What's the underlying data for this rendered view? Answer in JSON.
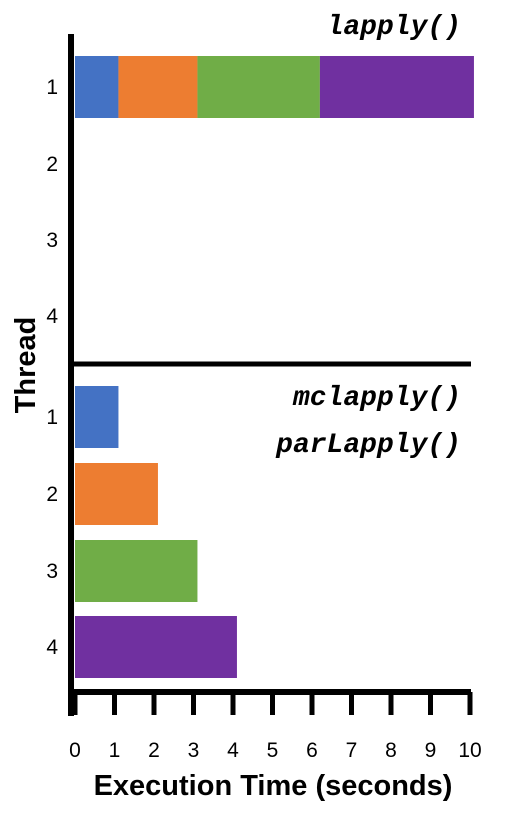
{
  "chart_data": {
    "type": "bar",
    "orientation": "horizontal",
    "stacked": true,
    "xlabel": "Execution Time (seconds)",
    "ylabel": "Thread",
    "xlim": [
      0,
      10
    ],
    "xticks": [
      "0",
      "1",
      "2",
      "3",
      "4",
      "5",
      "6",
      "7",
      "8",
      "9",
      "10"
    ],
    "grid": false,
    "legend": "none",
    "task_colors": [
      "#4472C4",
      "#ED7D31",
      "#70AD47",
      "#7030A0"
    ],
    "panels": [
      {
        "titles": [
          "lapply()"
        ],
        "threads": [
          "1",
          "2",
          "3",
          "4"
        ],
        "segments": [
          {
            "thread": "1",
            "start": 0,
            "end": 1.1,
            "task": 1
          },
          {
            "thread": "1",
            "start": 1.1,
            "end": 3.1,
            "task": 2
          },
          {
            "thread": "1",
            "start": 3.1,
            "end": 6.2,
            "task": 3
          },
          {
            "thread": "1",
            "start": 6.2,
            "end": 10.1,
            "task": 4
          }
        ]
      },
      {
        "titles": [
          "mclapply()",
          "parLapply()"
        ],
        "threads": [
          "1",
          "2",
          "3",
          "4"
        ],
        "segments": [
          {
            "thread": "1",
            "start": 0,
            "end": 1.1,
            "task": 1
          },
          {
            "thread": "2",
            "start": 0,
            "end": 2.1,
            "task": 2
          },
          {
            "thread": "3",
            "start": 0,
            "end": 3.1,
            "task": 3
          },
          {
            "thread": "4",
            "start": 0,
            "end": 4.1,
            "task": 4
          }
        ]
      }
    ]
  }
}
